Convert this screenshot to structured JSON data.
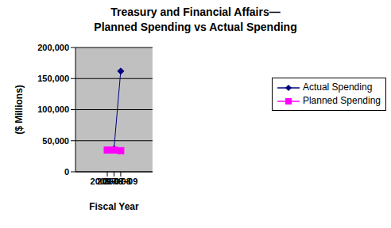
{
  "chart_data": {
    "type": "line",
    "title": "Treasury and Financial Affairs—\nPlanned Spending vs Actual Spending",
    "x_label": "Fiscal Year",
    "y_label": "($ Millions)",
    "categories": [
      "2006–07",
      "2007–08",
      "2008–09"
    ],
    "series": [
      {
        "name": "Actual Spending",
        "color": "#000080",
        "marker": "diamond",
        "values": [
          35500,
          37000,
          162000
        ]
      },
      {
        "name": "Planned Spending",
        "color": "#ff00ff",
        "marker": "square",
        "values": [
          35000,
          35000,
          34000
        ]
      }
    ],
    "ylim": [
      0,
      200000
    ],
    "yticks": [
      0,
      {
        "value": 50000,
        "label": "50,000"
      },
      {
        "value": 100000,
        "label": "100,000"
      },
      {
        "value": 150000,
        "label": "150,000"
      },
      {
        "value": 200000,
        "label": "200,000"
      }
    ],
    "grid": true,
    "legend": "right"
  }
}
